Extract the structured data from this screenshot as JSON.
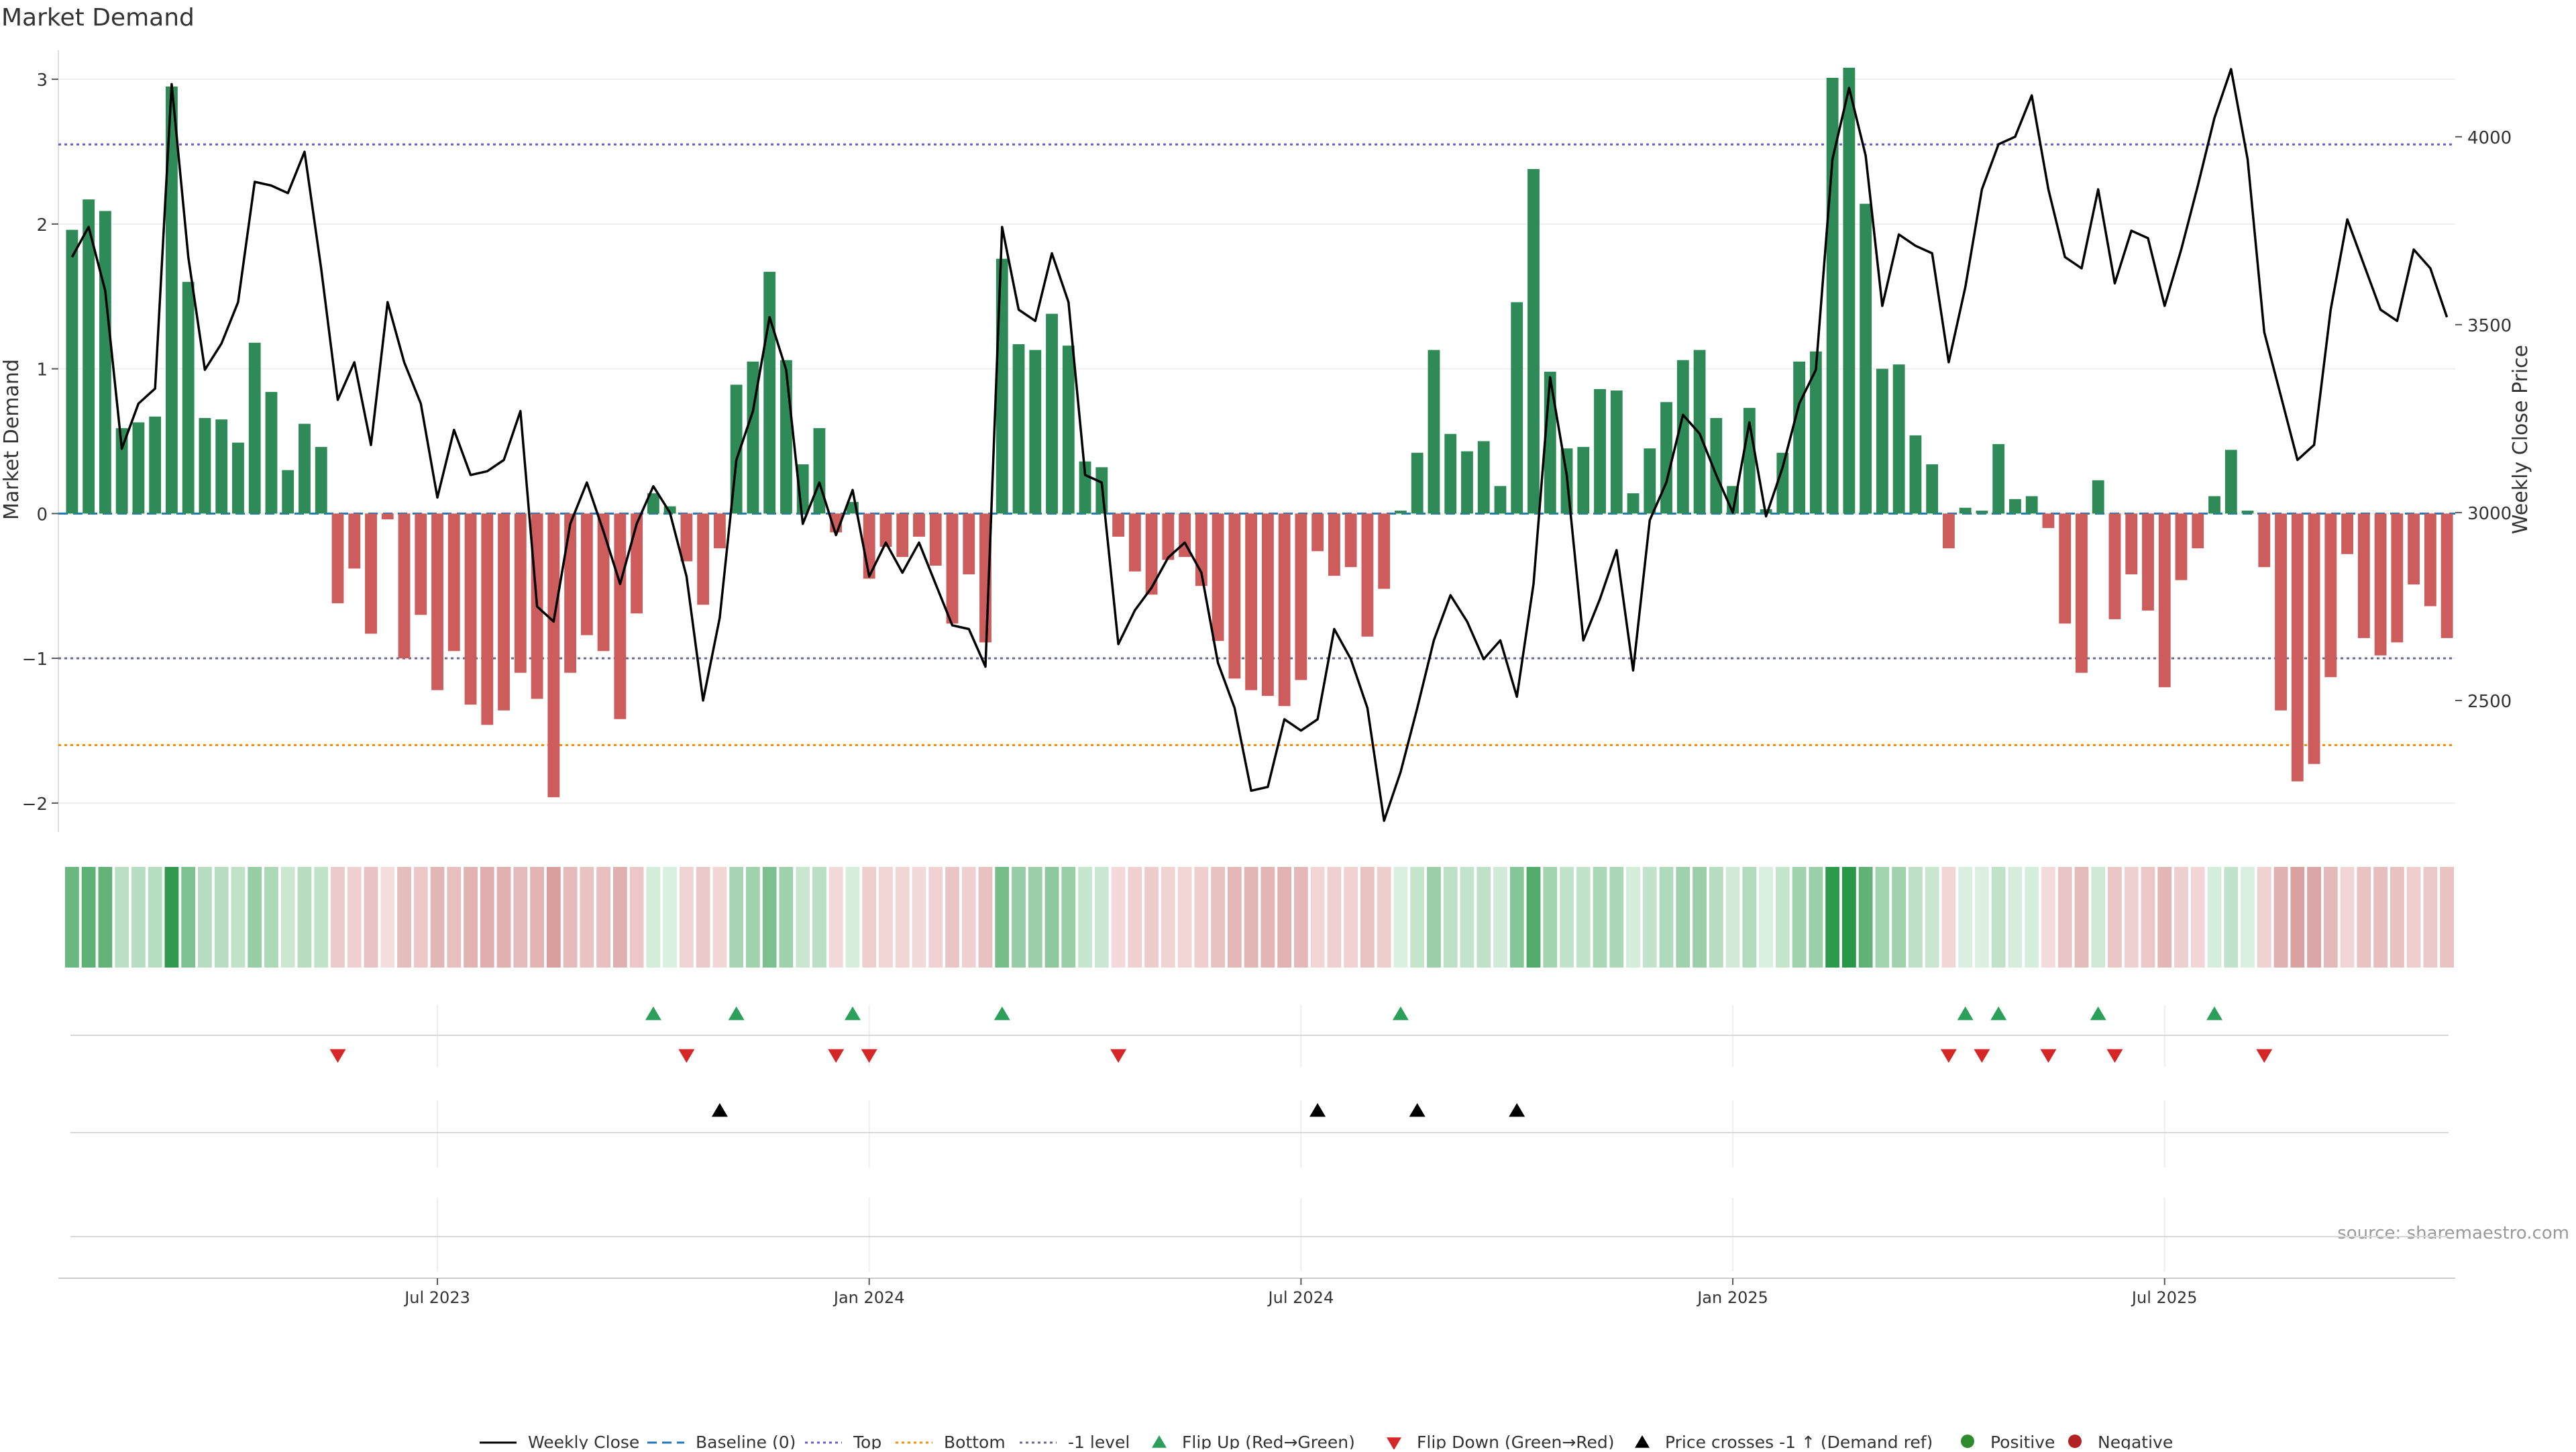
{
  "title": "Market Demand",
  "source_note": "source: sharemaestro.com",
  "colors": {
    "positive": "#2e8b57",
    "negative": "#cd5c5c",
    "price_line": "#000000",
    "baseline": "#1f77b4",
    "top_line": "#6a5acd",
    "bottom_line": "#ff8c00",
    "minus_one_line": "#6a6a8a",
    "flip_up": "#2ca05a",
    "flip_down": "#d62728",
    "cross_marker": "#000000"
  },
  "chart_data": {
    "type": "bar",
    "left_axis": {
      "label": "Market Demand",
      "range": [
        -2.2,
        3.2
      ],
      "ticks": [
        3,
        2,
        1,
        0,
        -1,
        -2
      ],
      "tick_labels": [
        "3",
        "2",
        "1",
        "0",
        "−1",
        "−2"
      ]
    },
    "right_axis": {
      "label": "Weekly Close Price",
      "range": [
        2150,
        4230
      ],
      "ticks": [
        4000,
        3500,
        3000,
        2500
      ],
      "tick_labels": [
        "4000",
        "3500",
        "3000",
        "2500"
      ]
    },
    "x_axis": {
      "start_week": 0,
      "weeks": 144,
      "ticks": [
        22,
        48,
        74,
        100,
        126
      ],
      "tick_labels": [
        "Jul 2023",
        "Jan 2024",
        "Jul 2024",
        "Jan 2025",
        "Jul 2025"
      ]
    },
    "reference_lines": [
      {
        "name": "Baseline (0)",
        "value": 0,
        "style": "dash"
      },
      {
        "name": "Top",
        "value": 2.55,
        "style": "dot"
      },
      {
        "name": "Bottom",
        "value": -1.6,
        "style": "dot"
      },
      {
        "name": "-1 level",
        "value": -1,
        "style": "dot"
      }
    ],
    "demand": [
      1.96,
      2.17,
      2.09,
      0.59,
      0.63,
      0.67,
      2.95,
      1.6,
      0.66,
      0.65,
      0.49,
      1.18,
      0.84,
      0.3,
      0.62,
      0.46,
      -0.62,
      -0.38,
      -0.83,
      -0.04,
      -1.0,
      -0.7,
      -1.22,
      -0.95,
      -1.32,
      -1.46,
      -1.36,
      -1.1,
      -1.28,
      -1.96,
      -1.1,
      -0.84,
      -0.95,
      -1.42,
      -0.69,
      0.14,
      0.05,
      -0.33,
      -0.63,
      -0.24,
      0.89,
      1.05,
      1.67,
      1.06,
      0.34,
      0.59,
      -0.13,
      0.08,
      -0.45,
      -0.23,
      -0.3,
      -0.16,
      -0.36,
      -0.76,
      -0.42,
      -0.89,
      1.76,
      1.17,
      1.13,
      1.38,
      1.16,
      0.36,
      0.32,
      -0.16,
      -0.4,
      -0.56,
      -0.32,
      -0.3,
      -0.5,
      -0.88,
      -1.14,
      -1.22,
      -1.26,
      -1.33,
      -1.15,
      -0.26,
      -0.43,
      -0.37,
      -0.85,
      -0.52,
      0.02,
      0.42,
      1.13,
      0.55,
      0.43,
      0.5,
      0.19,
      1.46,
      2.38,
      0.98,
      0.45,
      0.46,
      0.86,
      0.85,
      0.14,
      0.45,
      0.77,
      1.06,
      1.13,
      0.66,
      0.19,
      0.73,
      0.03,
      0.42,
      1.05,
      1.12,
      3.01,
      3.08,
      2.14,
      1.0,
      1.03,
      0.54,
      0.34,
      -0.24,
      0.04,
      0.02,
      0.48,
      0.1,
      0.12,
      -0.1,
      -0.76,
      -1.1,
      0.23,
      -0.73,
      -0.42,
      -0.67,
      -1.2,
      -0.46,
      -0.24,
      0.12,
      0.44,
      0.02,
      -0.37,
      -1.36,
      -1.85,
      -1.73,
      -1.13,
      -0.28,
      -0.86,
      -0.98,
      -0.89,
      -0.49,
      -0.64,
      -0.86
    ],
    "price": [
      3680,
      3760,
      3590,
      3170,
      3290,
      3330,
      4140,
      3680,
      3380,
      3450,
      3560,
      3880,
      3870,
      3850,
      3960,
      3650,
      3300,
      3400,
      3180,
      3560,
      3400,
      3290,
      3040,
      3220,
      3100,
      3110,
      3140,
      3270,
      2750,
      2710,
      2970,
      3080,
      2950,
      2810,
      2970,
      3070,
      3000,
      2830,
      2500,
      2720,
      3140,
      3270,
      3520,
      3380,
      2970,
      3080,
      2940,
      3060,
      2830,
      2920,
      2840,
      2920,
      2810,
      2700,
      2690,
      2590,
      3760,
      3540,
      3510,
      3690,
      3560,
      3100,
      3080,
      2650,
      2740,
      2800,
      2880,
      2920,
      2840,
      2600,
      2480,
      2260,
      2270,
      2450,
      2420,
      2450,
      2690,
      2610,
      2480,
      2180,
      2310,
      2480,
      2660,
      2780,
      2710,
      2610,
      2660,
      2510,
      2810,
      3360,
      3100,
      2660,
      2770,
      2900,
      2580,
      2980,
      3080,
      3260,
      3210,
      3100,
      3000,
      3240,
      2990,
      3120,
      3290,
      3380,
      3940,
      4130,
      3950,
      3550,
      3740,
      3710,
      3690,
      3400,
      3600,
      3860,
      3980,
      4000,
      4110,
      3860,
      3680,
      3650,
      3860,
      3610,
      3750,
      3730,
      3550,
      3700,
      3870,
      4050,
      4180,
      3940,
      3480,
      3310,
      3140,
      3180,
      3540,
      3780,
      3660,
      3540,
      3510,
      3700,
      3650,
      3520
    ],
    "flip_up_weeks": [
      35,
      40,
      47,
      56,
      80,
      114,
      116,
      122,
      129
    ],
    "flip_down_weeks": [
      16,
      37,
      46,
      48,
      63,
      113,
      115,
      119,
      123,
      132
    ],
    "price_cross_weeks": [
      39,
      75,
      81,
      87
    ],
    "legend": [
      "Weekly Close",
      "Baseline (0)",
      "Top",
      "Bottom",
      "-1 level",
      "Flip Up (Red→Green)",
      "Flip Down (Green→Red)",
      "Price crosses -1 ↑ (Demand ref)",
      "Positive",
      "Negative"
    ],
    "legend_position": "bottom-center",
    "grid": true
  }
}
